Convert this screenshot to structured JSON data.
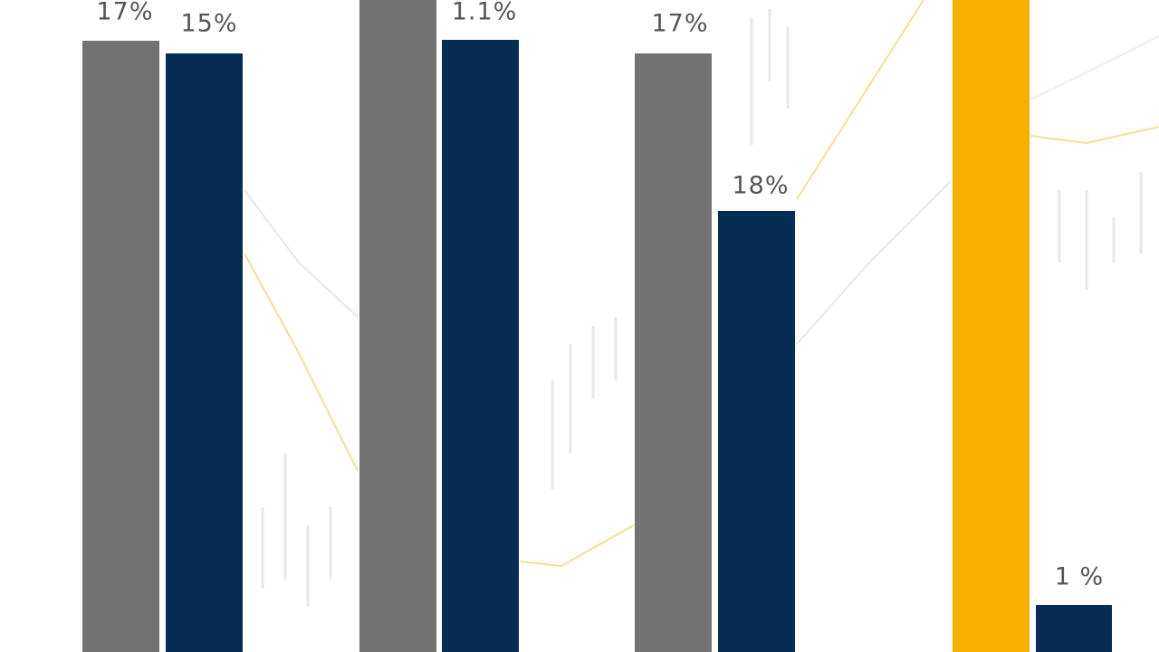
{
  "bar_labels": [
    "17%",
    "15%",
    "1.1%",
    "17%",
    "18%",
    "1 %"
  ]
}
